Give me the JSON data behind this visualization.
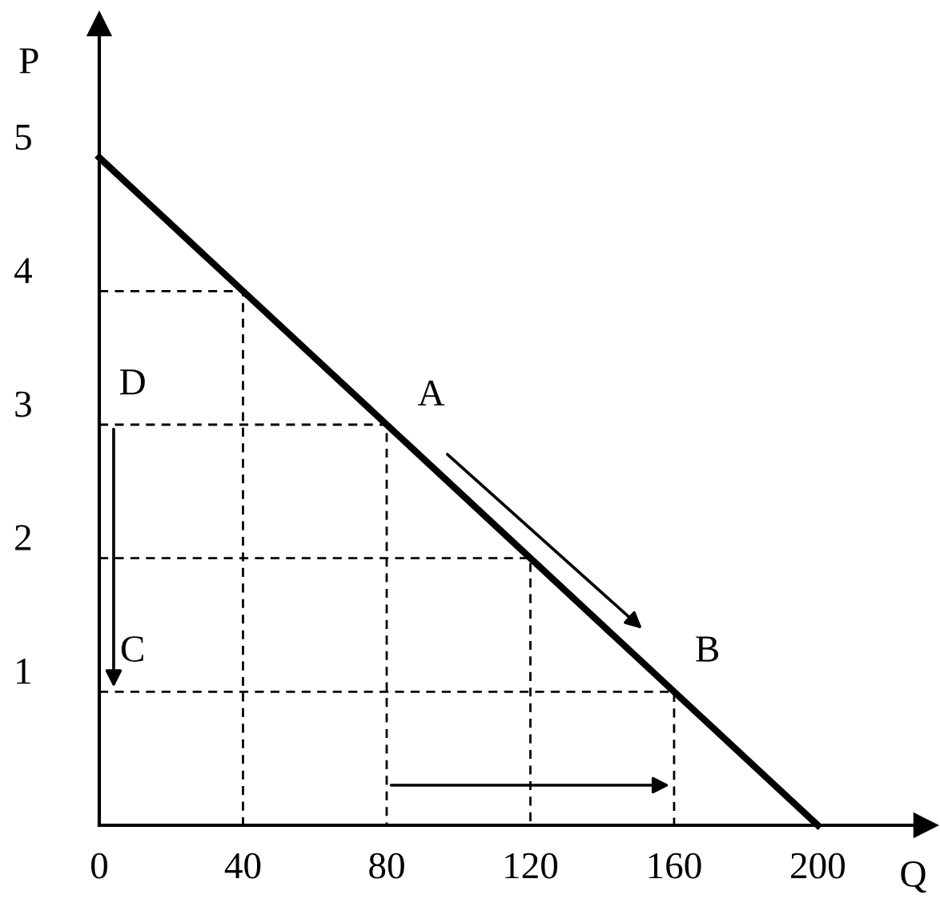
{
  "chart_data": {
    "type": "line",
    "xlabel": "Q",
    "ylabel": "P",
    "xlim": [
      0,
      230
    ],
    "ylim": [
      0,
      6
    ],
    "xticks": [
      0,
      40,
      80,
      120,
      160,
      200
    ],
    "yticks": [
      1,
      2,
      3,
      4,
      5
    ],
    "grid": false,
    "marker": "none",
    "series": [
      {
        "color": "#000000",
        "line_style": "solid",
        "x": [
          0,
          200
        ],
        "values": [
          5,
          0
        ]
      },
      {
        "type": "line",
        "color": "#000000",
        "line_style": "dashed",
        "x": [
          0,
          40,
          40
        ],
        "values": [
          4,
          4,
          0
        ]
      },
      {
        "type": "line",
        "color": "#000000",
        "line_style": "dashed",
        "x": [
          0,
          80,
          80
        ],
        "values": [
          3,
          3,
          0
        ]
      },
      {
        "type": "line",
        "color": "#000000",
        "line_style": "dashed",
        "x": [
          0,
          120,
          120
        ],
        "values": [
          2,
          2,
          0
        ]
      },
      {
        "type": "line",
        "color": "#000000",
        "line_style": "dashed",
        "x": [
          0,
          160,
          160
        ],
        "values": [
          1,
          1,
          0
        ]
      }
    ],
    "annotations": [
      {
        "text": "A",
        "x": 80,
        "y": 3
      },
      {
        "text": "B",
        "x": 160,
        "y": 1
      },
      {
        "text": "C",
        "x": 0,
        "y": 1
      },
      {
        "text": "D",
        "x": 0,
        "y": 3
      }
    ]
  }
}
